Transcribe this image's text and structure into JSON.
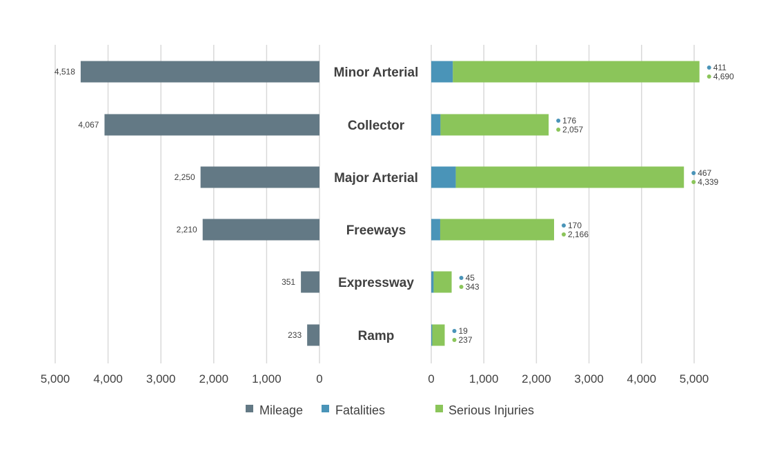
{
  "chart_data": [
    {
      "type": "bar",
      "orientation": "horizontal",
      "direction": "reversed",
      "categories": [
        "Minor Arterial",
        "Collector",
        "Major Arterial",
        "Freeways",
        "Expressway",
        "Ramp"
      ],
      "series": [
        {
          "name": "Mileage",
          "values": [
            4518,
            4067,
            2250,
            2210,
            351,
            233
          ],
          "labels": [
            "4,518",
            "4,067",
            "2,250",
            "2,210",
            "351",
            "233"
          ],
          "color": "#637985"
        }
      ],
      "xlim": [
        0,
        5000
      ],
      "ticks": [
        "5,000",
        "4,000",
        "3,000",
        "2,000",
        "1,000",
        "0"
      ],
      "tick_values": [
        5000,
        4000,
        3000,
        2000,
        1000,
        0
      ],
      "grid": true
    },
    {
      "type": "bar",
      "orientation": "horizontal",
      "stacked": true,
      "categories": [
        "Minor Arterial",
        "Collector",
        "Major Arterial",
        "Freeways",
        "Expressway",
        "Ramp"
      ],
      "series": [
        {
          "name": "Fatalities",
          "values": [
            411,
            176,
            467,
            170,
            45,
            19
          ],
          "labels": [
            "411",
            "176",
            "467",
            "170",
            "45",
            "19"
          ],
          "color": "#4a94b8"
        },
        {
          "name": "Serious Injuries",
          "values": [
            4690,
            2057,
            4339,
            2166,
            343,
            237
          ],
          "labels": [
            "4,690",
            "2,057",
            "4,339",
            "2,166",
            "343",
            "237"
          ],
          "color": "#8bc55a"
        }
      ],
      "xlim": [
        0,
        5000
      ],
      "ticks": [
        "0",
        "1,000",
        "2,000",
        "3,000",
        "4,000",
        "5,000"
      ],
      "tick_values": [
        0,
        1000,
        2000,
        3000,
        4000,
        5000
      ],
      "grid": true
    }
  ],
  "legend": {
    "placement": "bottom",
    "items": [
      {
        "label": "Mileage",
        "color": "#637985"
      },
      {
        "label": "Fatalities",
        "color": "#4a94b8"
      },
      {
        "label": "Serious Injuries",
        "color": "#8bc55a"
      }
    ]
  }
}
